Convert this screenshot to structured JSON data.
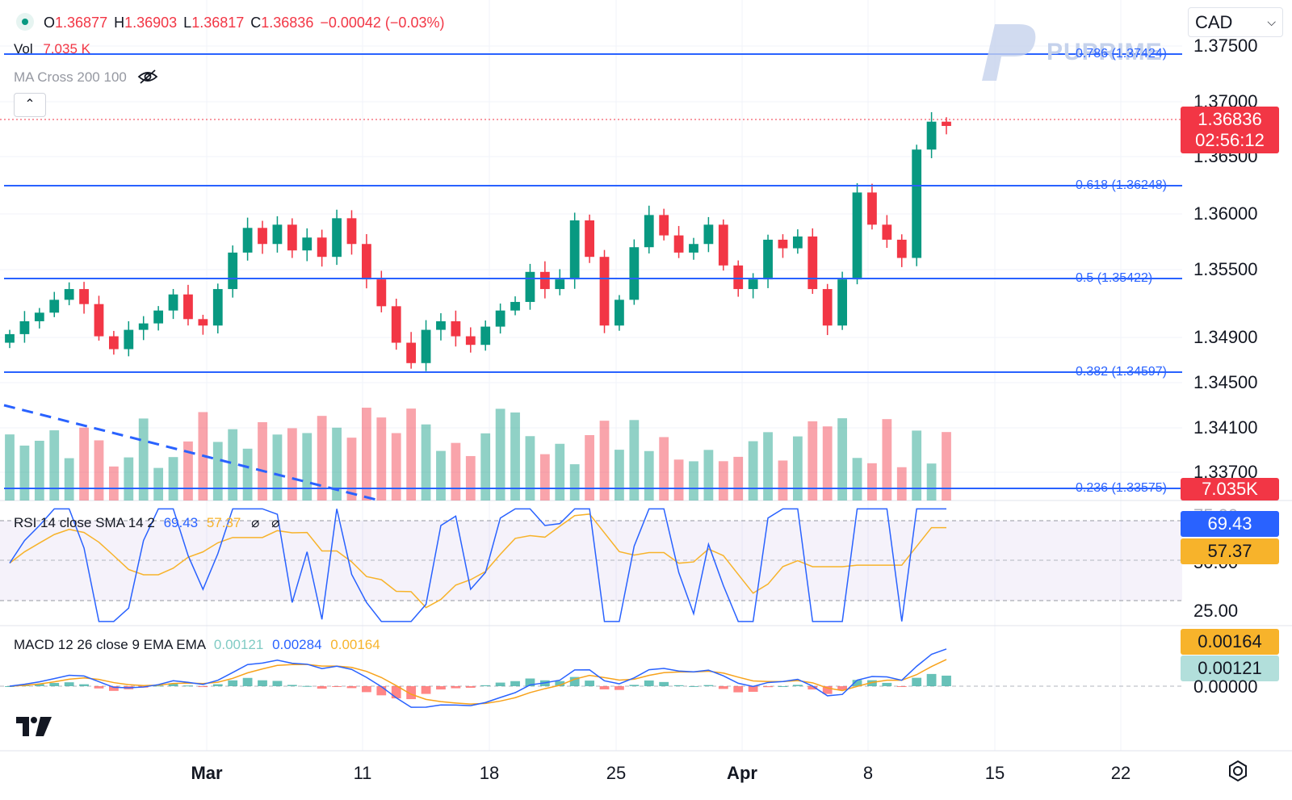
{
  "header": {
    "ohlc": {
      "o_label": "O",
      "o": "1.36877",
      "h_label": "H",
      "h": "1.36903",
      "l_label": "L",
      "l": "1.36817",
      "c_label": "C",
      "c": "1.36836",
      "change": "−0.00042 (−0.03%)"
    },
    "vol_label": "Vol",
    "vol_value": "7.035 K",
    "ma_cross_label": "MA Cross 200 100",
    "currency": "CAD",
    "watermark": "PUPRIME"
  },
  "price_axis": {
    "labels": [
      "1.37500",
      "1.37000",
      "1.36500",
      "1.36000",
      "1.35500",
      "1.34900",
      "1.34500",
      "1.34100",
      "1.33700"
    ],
    "current_price": "1.36836",
    "countdown": "02:56:12",
    "volume_badge": "7.035K"
  },
  "fib_levels": [
    {
      "ratio": "0.786",
      "value": "(1.37424)"
    },
    {
      "ratio": "0.618",
      "value": "(1.36248)"
    },
    {
      "ratio": "0.5",
      "value": "(1.35422)"
    },
    {
      "ratio": "0.382",
      "value": "(1.34597)"
    },
    {
      "ratio": "0.236",
      "value": "(1.33575)"
    }
  ],
  "rsi": {
    "label": "RSI 14 close SMA 14 2",
    "rsi_value": "69.43",
    "sma_value": "57.37",
    "axis_labels": [
      "75.00",
      "50.00",
      "25.00"
    ]
  },
  "macd": {
    "label": "MACD 12 26 close 9 EMA EMA",
    "hist_value": "0.00121",
    "macd_value": "0.00284",
    "signal_value": "0.00164",
    "axis_labels": [
      "0.00164",
      "0.00121",
      "0.00000"
    ]
  },
  "time_axis": {
    "labels": [
      "Mar",
      "11",
      "18",
      "25",
      "Apr",
      "8",
      "15",
      "22"
    ]
  },
  "colors": {
    "up": "#089981",
    "down": "#f23645",
    "fib": "#2962ff",
    "rsi": "#2962ff",
    "rsi_sma": "#f7b32b",
    "macd": "#2962ff",
    "signal": "#f7a21b"
  },
  "chart_data": {
    "type": "candlestick",
    "range": [
      "2024-02-15",
      "2024-04-10"
    ],
    "price_ylim": [
      1.335,
      1.376
    ],
    "candles_close": [
      1.349,
      1.3502,
      1.351,
      1.3522,
      1.3532,
      1.3518,
      1.3488,
      1.3476,
      1.3494,
      1.35,
      1.3512,
      1.3527,
      1.3504,
      1.3498,
      1.3532,
      1.3566,
      1.3589,
      1.3574,
      1.3592,
      1.3568,
      1.358,
      1.3562,
      1.3598,
      1.3574,
      1.3541,
      1.3516,
      1.3482,
      1.3463,
      1.3494,
      1.3502,
      1.3488,
      1.348,
      1.3497,
      1.3512,
      1.352,
      1.3548,
      1.3532,
      1.3541,
      1.3596,
      1.3562,
      1.3498,
      1.3522,
      1.3571,
      1.3601,
      1.3582,
      1.3566,
      1.3574,
      1.3592,
      1.3554,
      1.3532,
      1.3541,
      1.3578,
      1.357,
      1.3581,
      1.3532,
      1.3498,
      1.3541,
      1.3622,
      1.3592,
      1.3578,
      1.3561,
      1.3662,
      1.3688,
      1.3684
    ],
    "rsi_ylim": [
      20,
      80
    ],
    "macd_ylim": [
      -0.005,
      0.004
    ]
  }
}
